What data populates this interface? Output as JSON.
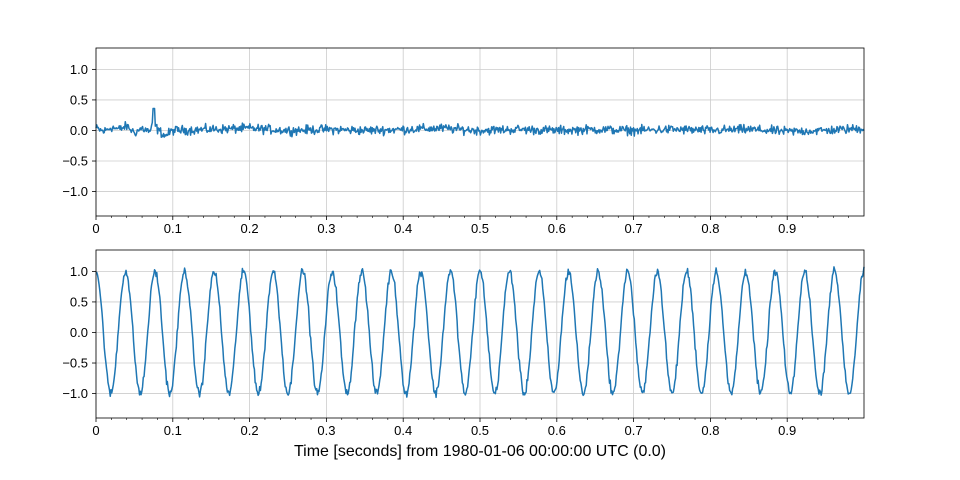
{
  "chart_data": [
    {
      "type": "line",
      "title": "",
      "xlabel": "",
      "ylabel": "",
      "xlim": [
        0,
        1
      ],
      "ylim": [
        -1.4,
        1.35
      ],
      "x_ticks": [
        0,
        0.1,
        0.2,
        0.3,
        0.4,
        0.5,
        0.6,
        0.7,
        0.8,
        0.9
      ],
      "x_tick_labels": [
        "0",
        "0.1",
        "0.2",
        "0.3",
        "0.4",
        "0.5",
        "0.6",
        "0.7",
        "0.8",
        "0.9"
      ],
      "y_ticks": [
        1.0,
        0.5,
        0.0,
        -0.5,
        -1.0
      ],
      "y_tick_labels": [
        "1.0",
        "0.5",
        "0.0",
        "−0.5",
        "−1.0"
      ],
      "grid": true,
      "series": [
        {
          "color": "#1f77b4",
          "description_points": {
            "x": [
              0,
              0.01,
              0.02,
              0.03,
              0.04,
              0.05,
              0.06,
              0.07,
              0.075,
              0.08,
              0.09,
              0.1,
              0.15,
              0.2,
              0.25,
              0.3,
              0.35,
              0.4,
              0.45,
              0.5,
              0.55,
              0.6,
              0.65,
              0.7,
              0.75,
              0.8,
              0.85,
              0.9,
              0.95,
              1.0
            ],
            "y": [
              0.1,
              -0.05,
              0.15,
              0.05,
              0.2,
              -0.1,
              0.1,
              -0.05,
              0.35,
              0.05,
              -0.25,
              0.0,
              0.05,
              0.1,
              0.0,
              0.05,
              0.0,
              0.05,
              0.1,
              0.0,
              0.05,
              0.0,
              0.05,
              0.0,
              0.05,
              0.0,
              0.05,
              -0.05,
              0.0,
              0.1
            ]
          },
          "noise_amplitude": 0.1
        }
      ]
    },
    {
      "type": "line",
      "title": "",
      "xlabel": "Time [seconds] from 1980-01-06 00:00:00 UTC (0.0)",
      "ylabel": "",
      "xlim": [
        0,
        1
      ],
      "ylim": [
        -1.4,
        1.35
      ],
      "x_ticks": [
        0,
        0.1,
        0.2,
        0.3,
        0.4,
        0.5,
        0.6,
        0.7,
        0.8,
        0.9
      ],
      "x_tick_labels": [
        "0",
        "0.1",
        "0.2",
        "0.3",
        "0.4",
        "0.5",
        "0.6",
        "0.7",
        "0.8",
        "0.9"
      ],
      "y_ticks": [
        1.0,
        0.5,
        0.0,
        -0.5,
        -1.0
      ],
      "y_tick_labels": [
        "1.0",
        "0.5",
        "0.0",
        "−0.5",
        "−1.0"
      ],
      "grid": true,
      "series": [
        {
          "color": "#1f77b4",
          "signal": "sine",
          "amplitude": 1.0,
          "frequency_hz": 26,
          "phase_start_value": 1.0,
          "noise_amplitude": 0.1
        }
      ]
    }
  ]
}
